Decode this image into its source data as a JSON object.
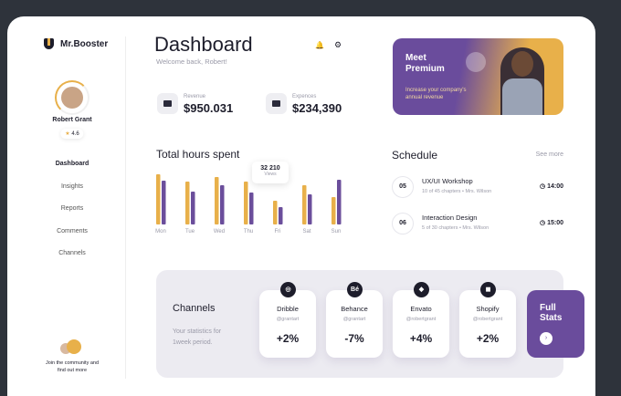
{
  "sidebar": {
    "brand": "Mr.Booster",
    "user": {
      "name": "Robert Grant",
      "rating": "4.6"
    },
    "nav": [
      "Dashboard",
      "Insights",
      "Reports",
      "Comments",
      "Channels"
    ],
    "community": "Join the community and find out more"
  },
  "header": {
    "title": "Dashboard",
    "subtitle": "Welcome back, Robert!"
  },
  "stats": [
    {
      "label": "Revenue",
      "value": "$950.031"
    },
    {
      "label": "Expences",
      "value": "$234,390"
    }
  ],
  "promo": {
    "title": "Meet Premium",
    "text": "Increase your company's annual revenue"
  },
  "hours_chart": {
    "type": "bar",
    "title": "Total hours spent",
    "categories": [
      "Mon",
      "Tue",
      "Wed",
      "Thu",
      "Fri",
      "Sat",
      "Sun"
    ],
    "series": [
      {
        "color": "#e8b04a",
        "values": [
          55,
          47,
          52,
          47,
          26,
          43,
          30
        ]
      },
      {
        "color": "#6b4e9b",
        "values": [
          48,
          36,
          43,
          35,
          19,
          33,
          49
        ]
      }
    ],
    "tooltip": {
      "value": "32 210",
      "label": "Views"
    }
  },
  "schedule": {
    "title": "Schedule",
    "more": "See more",
    "items": [
      {
        "date": "05",
        "title": "UX/UI Workshop",
        "meta": "10 of 45 chapters • Mrs. Wilson",
        "time": "14:00"
      },
      {
        "date": "06",
        "title": "Interaction Design",
        "meta": "5 of 30 chapters • Mrs. Wilson",
        "time": "15:00"
      }
    ]
  },
  "channels": {
    "title": "Channels",
    "text": "Your statistics for 1week period.",
    "cards": [
      {
        "icon": "◎",
        "name": "Dribble",
        "handle": "@grantart",
        "change": "+2%"
      },
      {
        "icon": "Bé",
        "name": "Behance",
        "handle": "@grantart",
        "change": "-7%"
      },
      {
        "icon": "◆",
        "name": "Envato",
        "handle": "@robertgrant",
        "change": "+4%"
      },
      {
        "icon": "◼",
        "name": "Shopify",
        "handle": "@robertgrant",
        "change": "+2%"
      }
    ],
    "full": "Full Stats"
  }
}
